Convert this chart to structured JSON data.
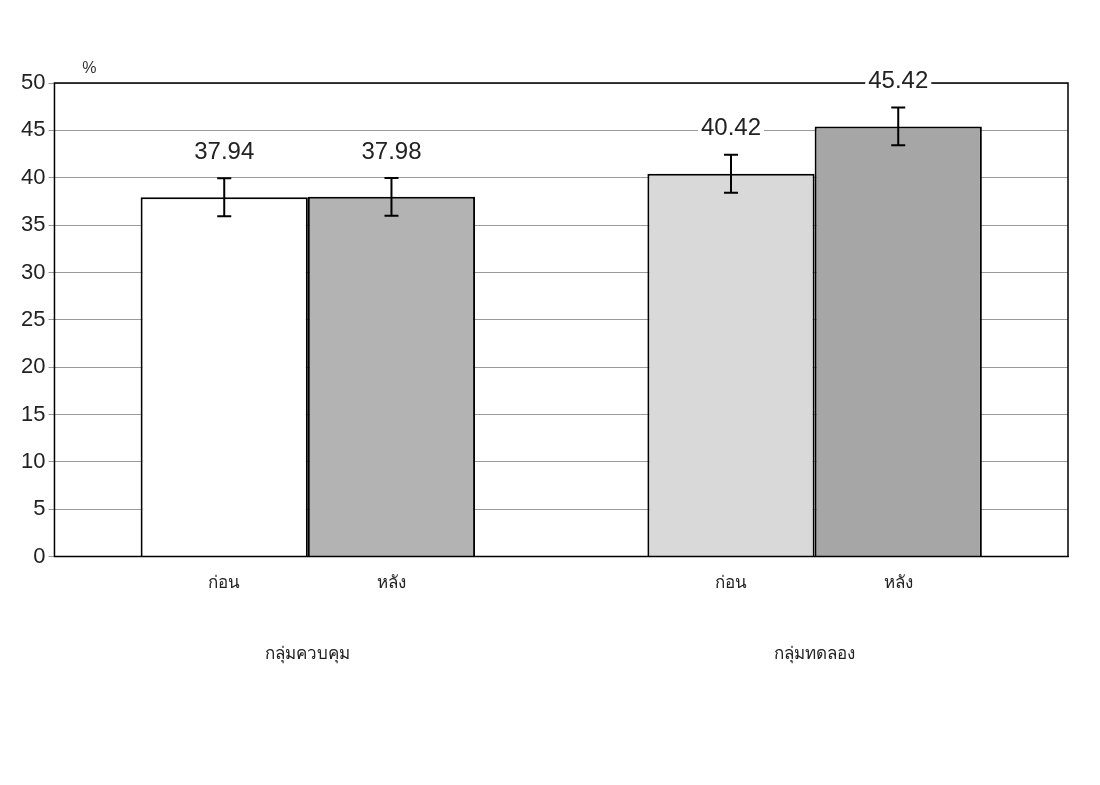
{
  "chart_data": {
    "type": "bar",
    "categories": [
      "กลุ่มควบคุม",
      "กลุ่มทดลอง"
    ],
    "series": [
      {
        "name": "ก่อน",
        "colors": [
          "#ffffff",
          "#d9d9d9"
        ],
        "values": [
          37.94,
          40.42
        ],
        "errors": [
          2,
          2
        ]
      },
      {
        "name": "หลัง",
        "colors": [
          "#b3b3b3",
          "#a6a6a6"
        ],
        "values": [
          37.98,
          45.42
        ],
        "errors": [
          2,
          2
        ]
      }
    ],
    "ylabel": "%",
    "ylim": [
      0,
      50
    ],
    "yticks": [
      0,
      5,
      10,
      15,
      20,
      25,
      30,
      35,
      40,
      45,
      50
    ],
    "grid": "y",
    "legend": false,
    "data_labels": true
  }
}
